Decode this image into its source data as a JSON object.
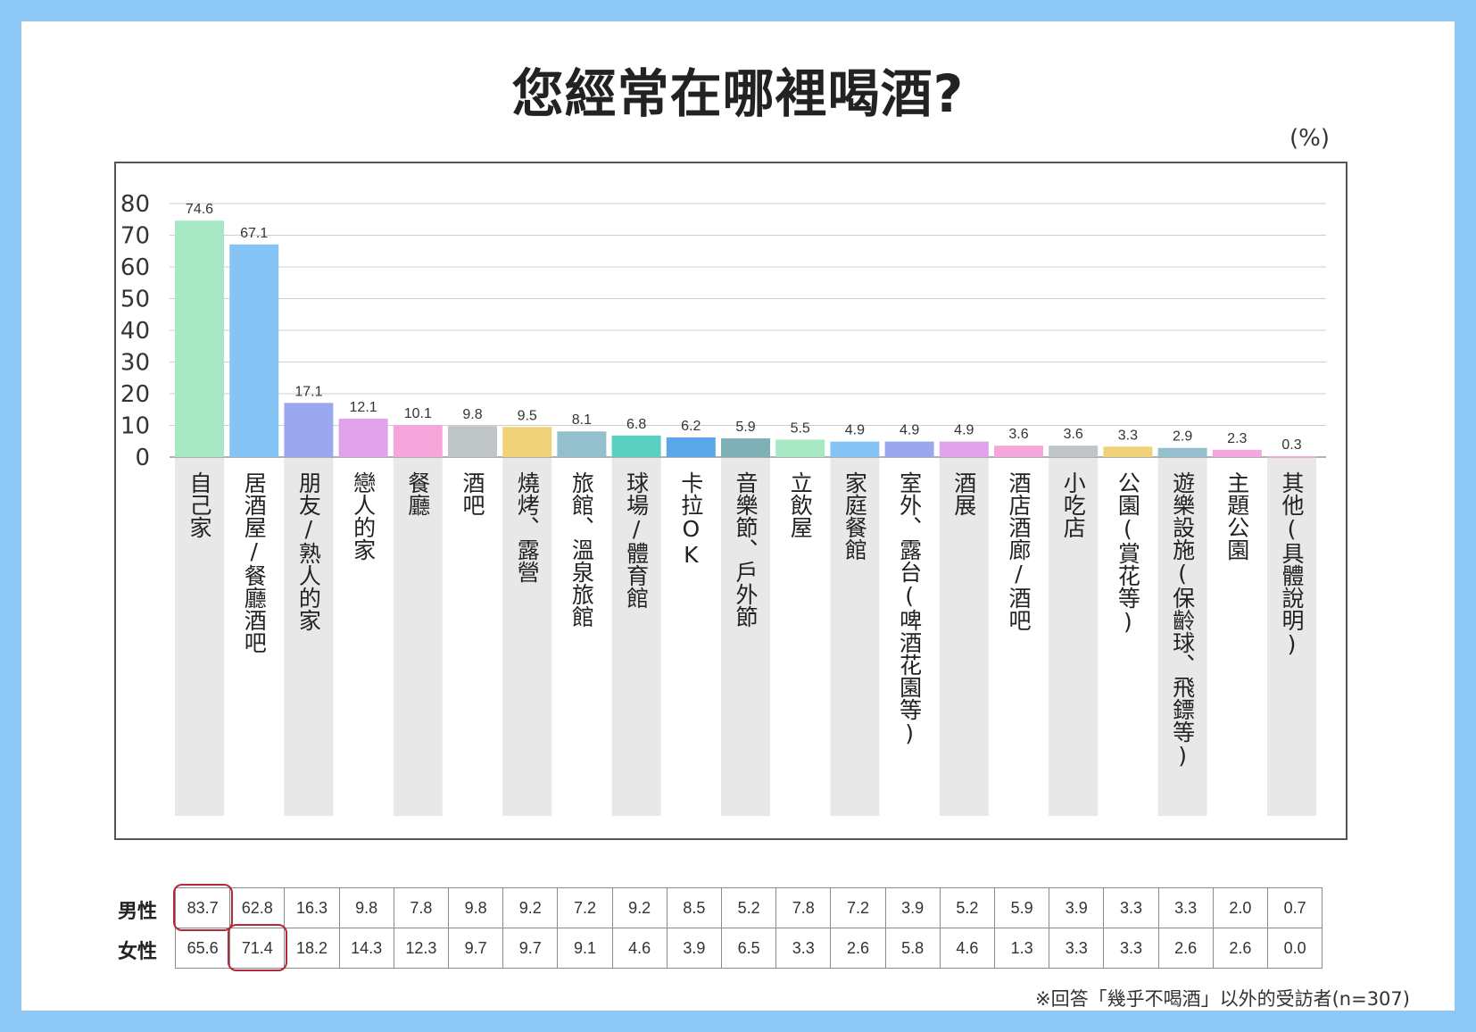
{
  "title": "您經常在哪裡喝酒?",
  "unit": "(%)",
  "footnote": "※回答「幾乎不喝酒」以外的受訪者(n=307)",
  "chart_data": {
    "type": "bar",
    "title": "您經常在哪裡喝酒?",
    "ylabel": "(%)",
    "ylim": [
      0,
      80
    ],
    "yticks": [
      0,
      10,
      20,
      30,
      40,
      50,
      60,
      70,
      80
    ],
    "grid": true,
    "categories": [
      "自己家",
      "居酒屋/餐廳酒吧",
      "朋友/熟人的家",
      "戀人的家",
      "餐廳",
      "酒吧",
      "燒烤、露營",
      "旅館、溫泉旅館",
      "球場/體育館",
      "卡拉OK",
      "音樂節、戶外節",
      "立飲屋",
      "家庭餐館",
      "室外、露台(啤酒花園等)",
      "酒展",
      "酒店酒廊/酒吧",
      "小吃店",
      "公園(賞花等)",
      "遊樂設施(保齡球、飛鏢等)",
      "主題公園",
      "其他(具體說明)"
    ],
    "values": [
      74.6,
      67.1,
      17.1,
      12.1,
      10.1,
      9.8,
      9.5,
      8.1,
      6.8,
      6.2,
      5.9,
      5.5,
      4.9,
      4.9,
      4.9,
      3.6,
      3.6,
      3.3,
      2.9,
      2.3,
      0.3
    ],
    "value_labels": [
      "74.6",
      "67.1",
      "17.1",
      "12.1",
      "10.1",
      "9.8",
      "9.5",
      "8.1",
      "6.8",
      "6.2",
      "5.9",
      "5.5",
      "4.9",
      "4.9",
      "4.9",
      "3.6",
      "3.6",
      "3.3",
      "2.9",
      "2.3",
      "0.3"
    ],
    "colors": [
      "#a5e8c3",
      "#86c4f6",
      "#9ba8ee",
      "#e0a2e8",
      "#f7a6dc",
      "#bfc4c6",
      "#f0d27a",
      "#93c0cc",
      "#5cd0c0",
      "#5aa8ea",
      "#7fb0b6",
      "#a5e8c3",
      "#86c4f6",
      "#9ba8ee",
      "#e0a2e8",
      "#f7a6dc",
      "#bfc4c6",
      "#f0d27a",
      "#93c0cc",
      "#f3a6e0",
      "#f7a6dc"
    ]
  },
  "table": {
    "rows": [
      {
        "label": "男性",
        "values": [
          "83.7",
          "62.8",
          "16.3",
          "9.8",
          "7.8",
          "9.8",
          "9.2",
          "7.2",
          "9.2",
          "8.5",
          "5.2",
          "7.8",
          "7.2",
          "3.9",
          "5.2",
          "5.9",
          "3.9",
          "3.3",
          "3.3",
          "2.0",
          "0.7"
        ]
      },
      {
        "label": "女性",
        "values": [
          "65.6",
          "71.4",
          "18.2",
          "14.3",
          "12.3",
          "9.7",
          "9.7",
          "9.1",
          "4.6",
          "3.9",
          "6.5",
          "3.3",
          "2.6",
          "5.8",
          "4.6",
          "1.3",
          "3.3",
          "3.3",
          "2.6",
          "2.6",
          "0.0"
        ]
      }
    ],
    "highlight_color": "#b42a3a"
  }
}
